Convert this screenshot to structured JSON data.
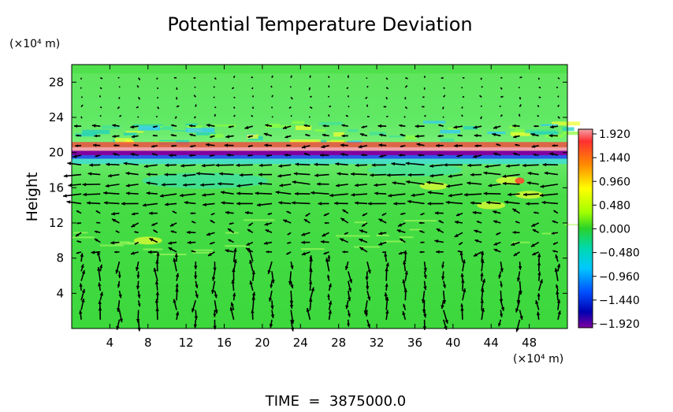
{
  "chart_data": {
    "type": "heatmap",
    "title": "Potential Temperature Deviation",
    "ylabel": "Height",
    "y_unit": "(×10⁴ m)",
    "x_unit": "(×10⁴ m)",
    "xlim": [
      0,
      52
    ],
    "ylim": [
      0,
      30
    ],
    "x_ticks": [
      4,
      8,
      12,
      16,
      20,
      24,
      28,
      32,
      36,
      40,
      44,
      48
    ],
    "y_ticks": [
      4,
      8,
      12,
      16,
      20,
      24,
      28
    ],
    "x_tick_labels": [
      "4",
      "8",
      "12",
      "16",
      "20",
      "24",
      "28",
      "32",
      "36",
      "40",
      "44",
      "48"
    ],
    "y_tick_labels": [
      "4",
      "8",
      "12",
      "16",
      "20",
      "24",
      "28"
    ],
    "colorbar_labels": [
      "1.920",
      "1.440",
      "0.960",
      "0.480",
      "0.000",
      "−0.480",
      "−0.960",
      "−1.440",
      "−1.920"
    ],
    "colorbar_range": [
      -1.92,
      1.92
    ],
    "footer": "TIME  =  3875000.0",
    "colors": {
      "background_field": "#3cde3c",
      "arrow": "#000000"
    }
  }
}
